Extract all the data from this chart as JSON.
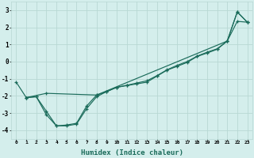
{
  "xlabel": "Humidex (Indice chaleur)",
  "bg_color": "#d4eeec",
  "grid_color": "#b8d8d4",
  "line_color": "#1a6b5a",
  "xlim": [
    -0.5,
    23.5
  ],
  "ylim": [
    -4.5,
    3.5
  ],
  "xticks": [
    0,
    1,
    2,
    3,
    4,
    5,
    6,
    7,
    8,
    9,
    10,
    11,
    12,
    13,
    14,
    15,
    16,
    17,
    18,
    19,
    20,
    21,
    22,
    23
  ],
  "yticks": [
    -4,
    -3,
    -2,
    -1,
    0,
    1,
    2,
    3
  ],
  "series1": [
    [
      0,
      -1.2
    ],
    [
      1,
      -2.1
    ],
    [
      2,
      -2.05
    ],
    [
      3,
      -3.1
    ],
    [
      4,
      -3.75
    ],
    [
      5,
      -3.75
    ],
    [
      6,
      -3.65
    ],
    [
      7,
      -2.75
    ],
    [
      8,
      -2.05
    ],
    [
      9,
      -1.75
    ],
    [
      10,
      -1.5
    ],
    [
      11,
      -1.4
    ],
    [
      12,
      -1.3
    ],
    [
      13,
      -1.2
    ],
    [
      14,
      -0.85
    ],
    [
      15,
      -0.5
    ],
    [
      16,
      -0.28
    ],
    [
      17,
      -0.05
    ],
    [
      18,
      0.3
    ],
    [
      19,
      0.5
    ],
    [
      20,
      0.72
    ],
    [
      21,
      1.2
    ],
    [
      22,
      2.9
    ],
    [
      23,
      2.3
    ]
  ],
  "series2": [
    [
      1,
      -2.1
    ],
    [
      2,
      -2.05
    ],
    [
      3,
      -2.9
    ],
    [
      4,
      -3.75
    ],
    [
      5,
      -3.7
    ],
    [
      6,
      -3.6
    ],
    [
      7,
      -2.6
    ],
    [
      8,
      -1.95
    ],
    [
      9,
      -1.75
    ],
    [
      10,
      -1.5
    ],
    [
      11,
      -1.38
    ],
    [
      12,
      -1.25
    ],
    [
      13,
      -1.12
    ],
    [
      14,
      -0.82
    ],
    [
      15,
      -0.48
    ],
    [
      16,
      -0.22
    ],
    [
      17,
      0.0
    ],
    [
      18,
      0.32
    ],
    [
      19,
      0.55
    ],
    [
      20,
      0.75
    ],
    [
      21,
      1.2
    ],
    [
      22,
      2.35
    ],
    [
      23,
      2.3
    ]
  ],
  "series3": [
    [
      1,
      -2.1
    ],
    [
      3,
      -1.85
    ],
    [
      8,
      -1.95
    ],
    [
      21,
      1.2
    ],
    [
      22,
      2.9
    ],
    [
      23,
      2.3
    ]
  ]
}
